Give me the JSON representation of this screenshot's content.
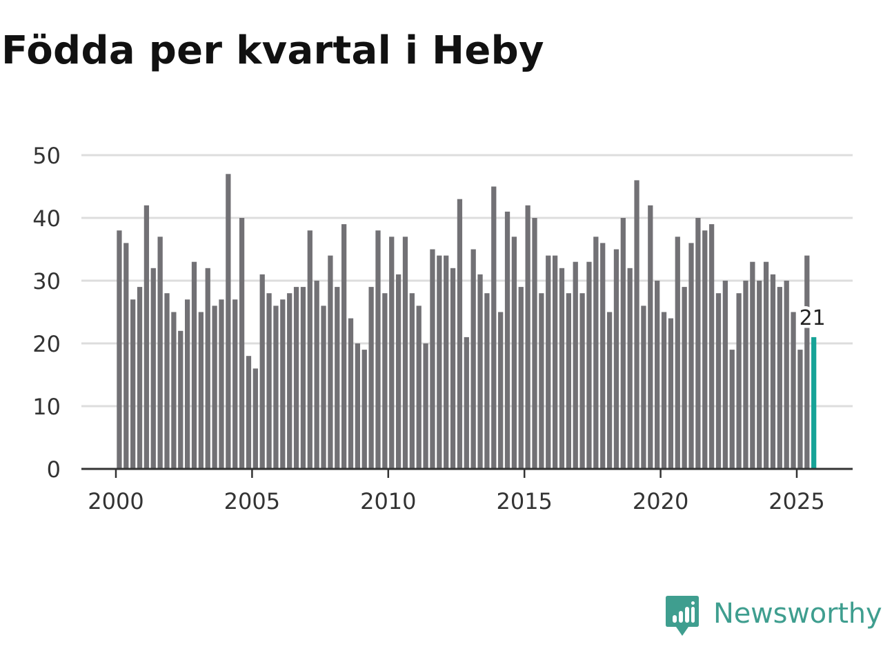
{
  "title": "Födda per kvartal i Heby",
  "brand": {
    "name": "Newsworthy",
    "color": "#3f9e8f",
    "icon": "newsworthy-logo-icon"
  },
  "colors": {
    "bar": "#727175",
    "highlight": "#16a397",
    "grid": "#dddddd",
    "axis": "#333333"
  },
  "chart_data": {
    "type": "bar",
    "title": "Födda per kvartal i Heby",
    "xlabel": "",
    "ylabel": "",
    "ylim": [
      0,
      50
    ],
    "yticks": [
      0,
      10,
      20,
      30,
      40,
      50
    ],
    "xticks": [
      "2000",
      "2005",
      "2010",
      "2015",
      "2020",
      "2025"
    ],
    "grid": "horizontal",
    "start_year": 2000,
    "start_quarter": 1,
    "categories": [
      "2000 Q1",
      "2000 Q2",
      "2000 Q3",
      "2000 Q4",
      "2001 Q1",
      "2001 Q2",
      "2001 Q3",
      "2001 Q4",
      "2002 Q1",
      "2002 Q2",
      "2002 Q3",
      "2002 Q4",
      "2003 Q1",
      "2003 Q2",
      "2003 Q3",
      "2003 Q4",
      "2004 Q1",
      "2004 Q2",
      "2004 Q3",
      "2004 Q4",
      "2005 Q1",
      "2005 Q2",
      "2005 Q3",
      "2005 Q4",
      "2006 Q1",
      "2006 Q2",
      "2006 Q3",
      "2006 Q4",
      "2007 Q1",
      "2007 Q2",
      "2007 Q3",
      "2007 Q4",
      "2008 Q1",
      "2008 Q2",
      "2008 Q3",
      "2008 Q4",
      "2009 Q1",
      "2009 Q2",
      "2009 Q3",
      "2009 Q4",
      "2010 Q1",
      "2010 Q2",
      "2010 Q3",
      "2010 Q4",
      "2011 Q1",
      "2011 Q2",
      "2011 Q3",
      "2011 Q4",
      "2012 Q1",
      "2012 Q2",
      "2012 Q3",
      "2012 Q4",
      "2013 Q1",
      "2013 Q2",
      "2013 Q3",
      "2013 Q4",
      "2014 Q1",
      "2014 Q2",
      "2014 Q3",
      "2014 Q4",
      "2015 Q1",
      "2015 Q2",
      "2015 Q3",
      "2015 Q4",
      "2016 Q1",
      "2016 Q2",
      "2016 Q3",
      "2016 Q4",
      "2017 Q1",
      "2017 Q2",
      "2017 Q3",
      "2017 Q4",
      "2018 Q1",
      "2018 Q2",
      "2018 Q3",
      "2018 Q4",
      "2019 Q1",
      "2019 Q2",
      "2019 Q3",
      "2019 Q4",
      "2020 Q1",
      "2020 Q2",
      "2020 Q3",
      "2020 Q4",
      "2021 Q1",
      "2021 Q2",
      "2021 Q3",
      "2021 Q4",
      "2022 Q1",
      "2022 Q2",
      "2022 Q3",
      "2022 Q4",
      "2023 Q1",
      "2023 Q2",
      "2023 Q3",
      "2023 Q4",
      "2024 Q1",
      "2024 Q2",
      "2024 Q3",
      "2024 Q4",
      "2025 Q1",
      "2025 Q2",
      "2025 Q3"
    ],
    "values": [
      38,
      36,
      27,
      29,
      42,
      32,
      37,
      28,
      25,
      22,
      27,
      33,
      25,
      32,
      26,
      27,
      47,
      27,
      40,
      18,
      16,
      31,
      28,
      26,
      27,
      28,
      29,
      29,
      38,
      30,
      26,
      34,
      29,
      39,
      24,
      20,
      19,
      29,
      38,
      28,
      37,
      31,
      37,
      28,
      26,
      20,
      35,
      34,
      34,
      32,
      43,
      21,
      35,
      31,
      28,
      45,
      25,
      41,
      37,
      29,
      42,
      40,
      28,
      34,
      34,
      32,
      28,
      33,
      28,
      33,
      37,
      36,
      25,
      35,
      40,
      32,
      46,
      26,
      42,
      30,
      25,
      24,
      37,
      29,
      36,
      40,
      38,
      39,
      28,
      30,
      19,
      28,
      30,
      33,
      30,
      33,
      31,
      29,
      30,
      25,
      19,
      34,
      21
    ],
    "highlight_index": 102,
    "annotations": [
      {
        "index": 102,
        "text": "21"
      }
    ]
  }
}
